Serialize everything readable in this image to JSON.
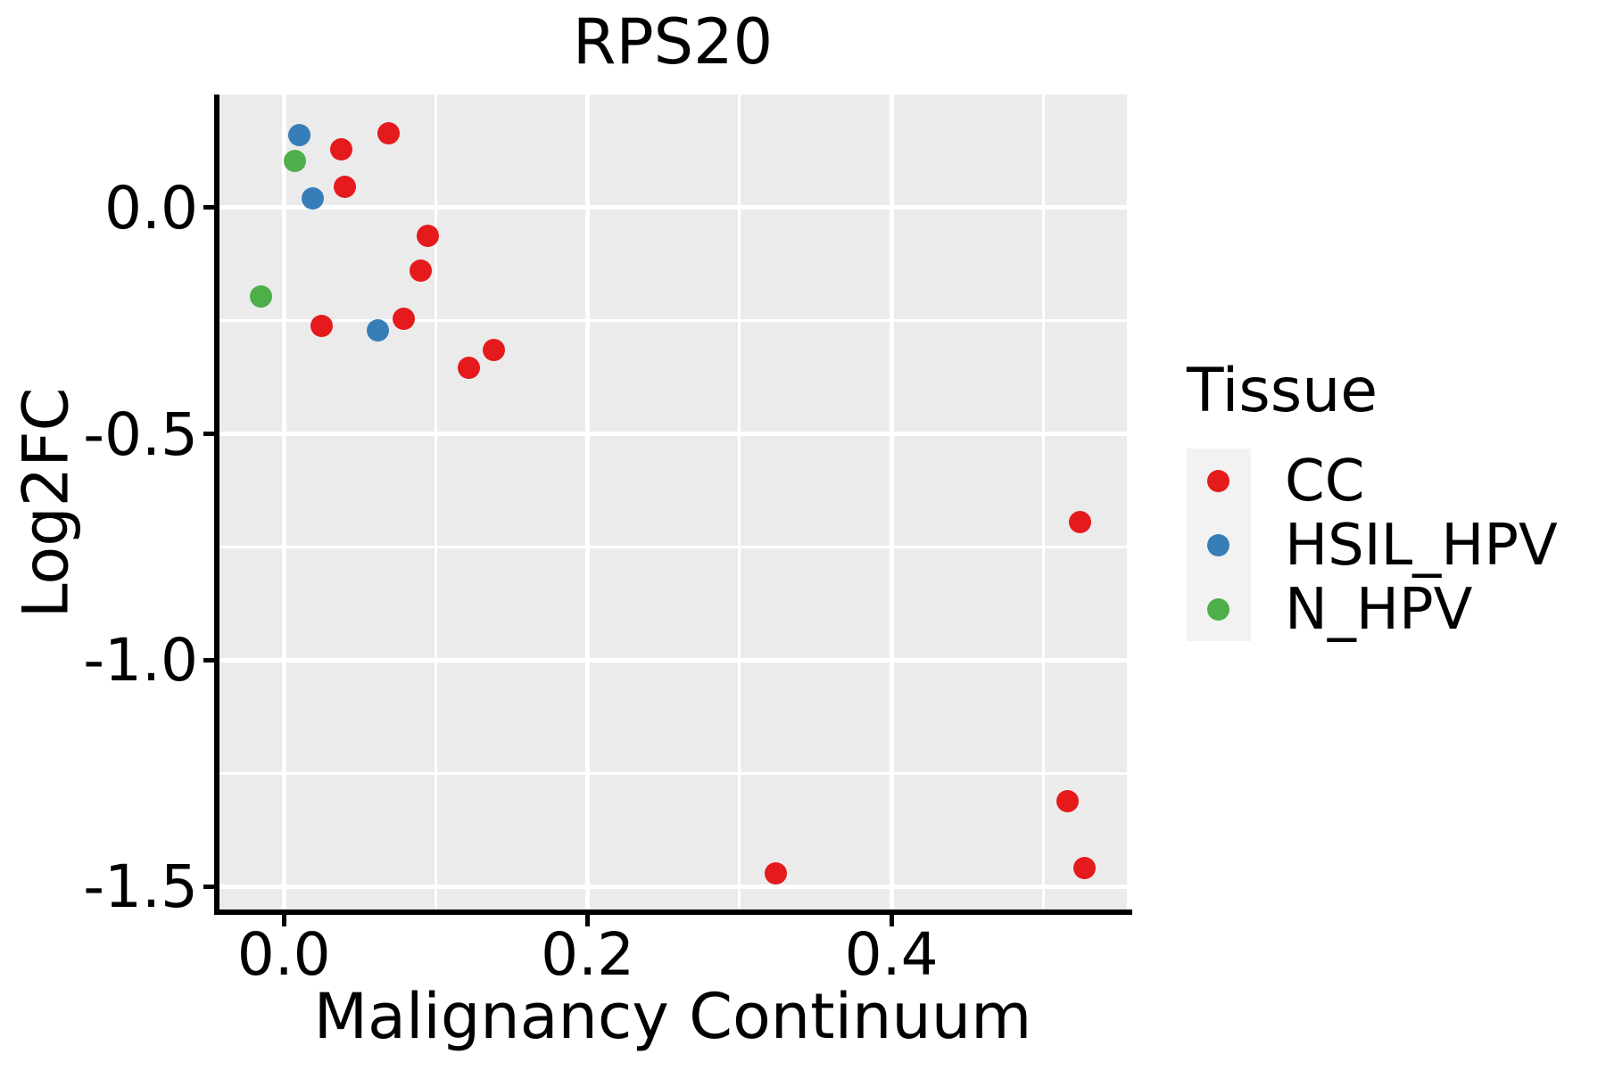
{
  "title": "RPS20",
  "axes": {
    "x_label": "Malignancy Continuum",
    "y_label": "Log2FC"
  },
  "legend": {
    "title": "Tissue",
    "items": [
      {
        "label": "CC",
        "color": "#E41A1C"
      },
      {
        "label": "HSIL_HPV",
        "color": "#377EB8"
      },
      {
        "label": "N_HPV",
        "color": "#4DAF4A"
      }
    ]
  },
  "colors": {
    "panel_background": "#EBEBEB",
    "gridline": "#FFFFFF",
    "legend_key_background": "#F2F2F2",
    "axis_line": "#000000",
    "text": "#000000"
  },
  "chart_data": {
    "type": "scatter",
    "title": "RPS20",
    "xlabel": "Malignancy Continuum",
    "ylabel": "Log2FC",
    "xlim": [
      -0.043,
      0.555
    ],
    "ylim": [
      -1.555,
      0.25
    ],
    "grid": true,
    "legend_position": "right",
    "legend_title": "Tissue",
    "x_ticks": [
      {
        "value": 0.0,
        "label": "0.0"
      },
      {
        "value": 0.2,
        "label": "0.2"
      },
      {
        "value": 0.4,
        "label": "0.4"
      }
    ],
    "y_ticks": [
      {
        "value": 0.0,
        "label": "0.0"
      },
      {
        "value": -0.5,
        "label": "-0.5"
      },
      {
        "value": -1.0,
        "label": "-1.0"
      },
      {
        "value": -1.5,
        "label": "-1.5"
      }
    ],
    "x_minor_gridlines": [
      0.1,
      0.3,
      0.5
    ],
    "y_minor_gridlines": [
      -0.25,
      -0.75,
      -1.25
    ],
    "series": [
      {
        "name": "CC",
        "color": "#E41A1C",
        "points": [
          [
            0.038,
            0.128
          ],
          [
            0.069,
            0.165
          ],
          [
            0.04,
            0.047
          ],
          [
            0.095,
            -0.063
          ],
          [
            0.09,
            -0.14
          ],
          [
            0.025,
            -0.262
          ],
          [
            0.079,
            -0.246
          ],
          [
            0.122,
            -0.353
          ],
          [
            0.138,
            -0.315
          ],
          [
            0.524,
            -0.694
          ],
          [
            0.324,
            -1.471
          ],
          [
            0.516,
            -1.311
          ],
          [
            0.527,
            -1.459
          ]
        ]
      },
      {
        "name": "HSIL_HPV",
        "color": "#377EB8",
        "points": [
          [
            0.01,
            0.16
          ],
          [
            0.019,
            0.02
          ],
          [
            0.062,
            -0.272
          ]
        ]
      },
      {
        "name": "N_HPV",
        "color": "#4DAF4A",
        "points": [
          [
            0.007,
            0.103
          ],
          [
            -0.015,
            -0.197
          ]
        ]
      }
    ]
  }
}
